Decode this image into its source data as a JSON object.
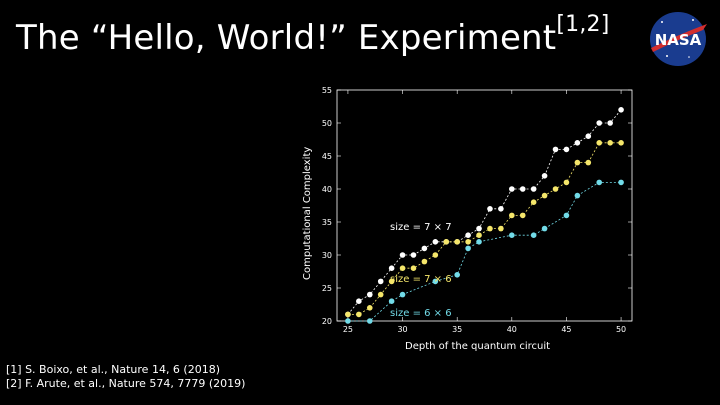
{
  "slide": {
    "title_main": "The “Hello, World!” Experiment",
    "title_sup": "[1,2]",
    "logo_text": "NASA",
    "references": [
      "[1] S. Boixo, et al., Nature 14, 6 (2018)",
      "[2] F. Arute, et al., Nature 574, 7779 (2019)"
    ]
  },
  "chart_data": {
    "type": "line",
    "xlabel": "Depth of the quantum circuit",
    "ylabel": "Computational Complexity",
    "xlim": [
      24,
      51
    ],
    "ylim": [
      20,
      55
    ],
    "xticks": [
      25,
      30,
      35,
      40,
      45,
      50
    ],
    "yticks": [
      20,
      25,
      30,
      35,
      40,
      45,
      50,
      55
    ],
    "grid": false,
    "series": [
      {
        "name": "size = 7 × 7",
        "color": "#ffffff",
        "x": [
          25,
          26,
          27,
          28,
          29,
          30,
          31,
          32,
          33,
          34,
          35,
          36,
          37,
          38,
          39,
          40,
          41,
          42,
          43,
          44,
          45,
          46,
          47,
          48,
          49,
          50
        ],
        "y": [
          21,
          23,
          24,
          26,
          28,
          30,
          30,
          31,
          32,
          32,
          32,
          33,
          34,
          37,
          37,
          40,
          40,
          40,
          42,
          46,
          46,
          47,
          48,
          50,
          50,
          52
        ]
      },
      {
        "name": "size = 7 × 6",
        "color": "#f5e66a",
        "x": [
          25,
          26,
          27,
          28,
          29,
          30,
          31,
          32,
          33,
          34,
          35,
          36,
          37,
          38,
          39,
          40,
          41,
          42,
          43,
          44,
          45,
          46,
          47,
          48,
          49,
          50
        ],
        "y": [
          21,
          21,
          22,
          24,
          26,
          28,
          28,
          29,
          30,
          32,
          32,
          32,
          33,
          34,
          34,
          36,
          36,
          38,
          39,
          40,
          41,
          44,
          44,
          47,
          47,
          47
        ]
      },
      {
        "name": "size = 6 × 6",
        "color": "#72dbe8",
        "x": [
          25,
          27,
          29,
          30,
          33,
          35,
          36,
          37,
          40,
          42,
          43,
          45,
          46,
          48,
          50
        ],
        "y": [
          20,
          20,
          23,
          24,
          26,
          27,
          31,
          32,
          33,
          33,
          34,
          36,
          39,
          41,
          41
        ]
      }
    ]
  }
}
